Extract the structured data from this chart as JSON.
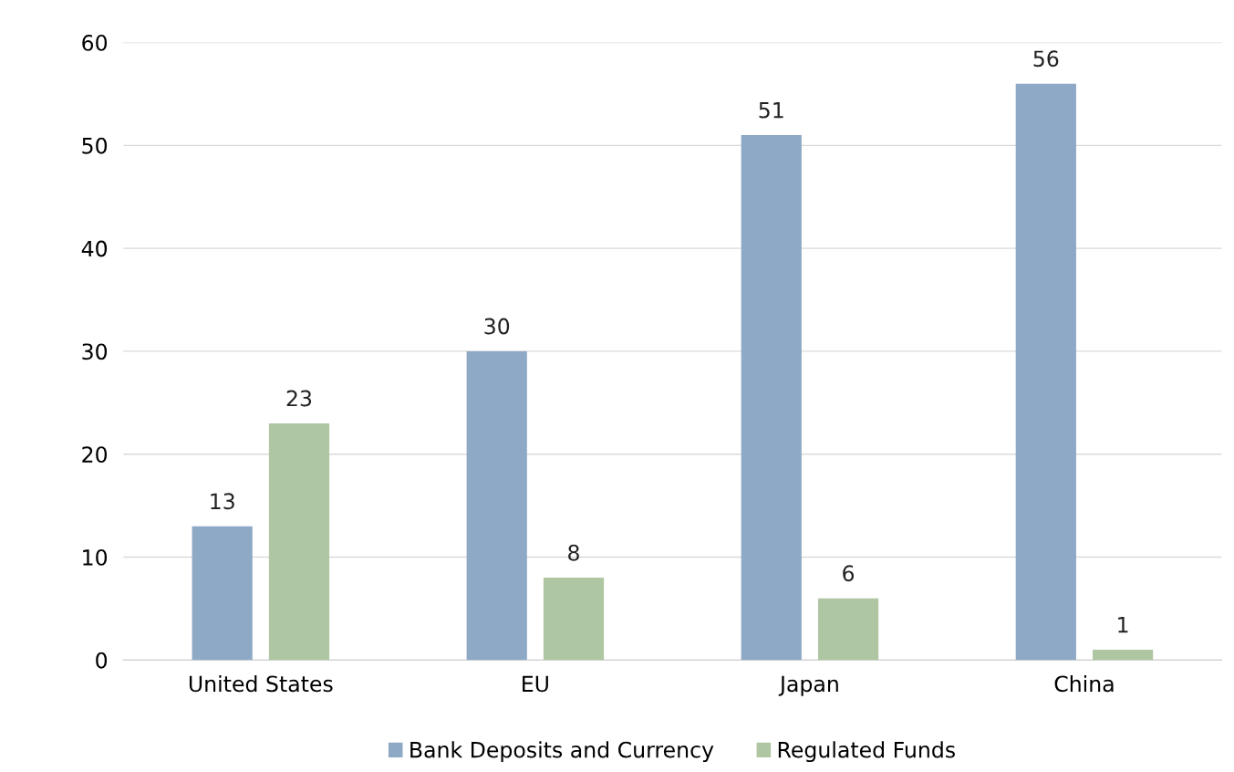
{
  "chart_data": {
    "type": "bar",
    "categories": [
      "United States",
      "EU",
      "Japan",
      "China"
    ],
    "series": [
      {
        "name": "Bank Deposits and Currency",
        "color": "#8ea9c6",
        "values": [
          13,
          30,
          51,
          56
        ]
      },
      {
        "name": "Regulated Funds",
        "color": "#afc6a2",
        "values": [
          23,
          8,
          6,
          1
        ]
      }
    ],
    "ylim": [
      0,
      60
    ],
    "yticks": [
      0,
      10,
      20,
      30,
      40,
      50,
      60
    ],
    "grid": "y",
    "legend": "bottom",
    "data_labels": true
  }
}
